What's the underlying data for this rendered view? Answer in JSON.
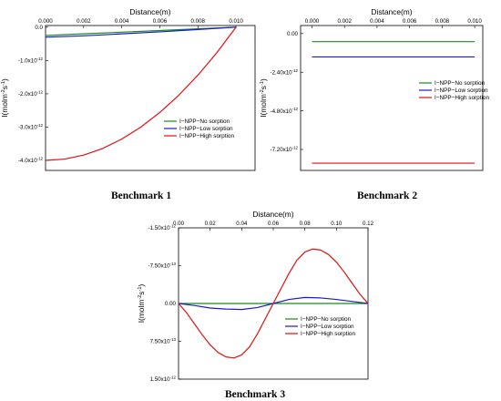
{
  "chart_data": [
    {
      "type": "line",
      "caption": "Benchmark 1",
      "xlabel": "Distance(m)",
      "ylabel_main": "I(molm",
      "ylabel_sup1": "-2",
      "ylabel_mid": "s",
      "ylabel_sup2": "-1",
      "ylabel_end": ")",
      "xlim": [
        0,
        0.011
      ],
      "ylim": [
        -4.3e-12,
        5e-14
      ],
      "x_ticks": [
        {
          "v": 0.0,
          "label": "0.000"
        },
        {
          "v": 0.002,
          "label": "0.002"
        },
        {
          "v": 0.004,
          "label": "0.004"
        },
        {
          "v": 0.006,
          "label": "0.006"
        },
        {
          "v": 0.008,
          "label": "0.008"
        },
        {
          "v": 0.01,
          "label": "0.010"
        }
      ],
      "y_ticks": [
        {
          "v": 0.0,
          "label": "0.0",
          "exp": ""
        },
        {
          "v": -1e-12,
          "label": "-1.0x10",
          "exp": "-12"
        },
        {
          "v": -2e-12,
          "label": "-2.0x10",
          "exp": "-12"
        },
        {
          "v": -3e-12,
          "label": "-3.0x10",
          "exp": "-12"
        },
        {
          "v": -4e-12,
          "label": "-4.0x10",
          "exp": "-12"
        }
      ],
      "legend_position": "center-right",
      "series": [
        {
          "name": "I−NPP−No sorption",
          "color": "#1a8a1a",
          "x": [
            0,
            0.002,
            0.004,
            0.006,
            0.008,
            0.01
          ],
          "y": [
            -2.5e-13,
            -2e-13,
            -1.5e-13,
            -1e-13,
            -5e-14,
            0.0
          ]
        },
        {
          "name": "I−NPP−Low sorption",
          "color": "#1a1ad0",
          "x": [
            0,
            0.002,
            0.004,
            0.006,
            0.008,
            0.01
          ],
          "y": [
            -3e-13,
            -2.6e-13,
            -2e-13,
            -1.4e-13,
            -7e-14,
            0.0
          ]
        },
        {
          "name": "I−NPP−High sorption",
          "color": "#e01010",
          "x": [
            0,
            0.001,
            0.002,
            0.003,
            0.004,
            0.005,
            0.006,
            0.007,
            0.008,
            0.009,
            0.01
          ],
          "y": [
            -4e-12,
            -3.96e-12,
            -3.84e-12,
            -3.64e-12,
            -3.36e-12,
            -3e-12,
            -2.56e-12,
            -2.04e-12,
            -1.44e-12,
            -7.6e-13,
            0.0
          ]
        }
      ]
    },
    {
      "type": "line",
      "caption": "Benchmark 2",
      "xlabel": "Distance(m)",
      "ylabel_main": "I(molm",
      "ylabel_sup1": "-2",
      "ylabel_mid": "s",
      "ylabel_sup2": "-1",
      "ylabel_end": ")",
      "xlim": [
        -0.0007,
        0.0105
      ],
      "ylim": [
        -8.5e-12,
        5e-13
      ],
      "x_ticks": [
        {
          "v": 0.0,
          "label": "0.000"
        },
        {
          "v": 0.002,
          "label": "0.002"
        },
        {
          "v": 0.004,
          "label": "0.004"
        },
        {
          "v": 0.006,
          "label": "0.006"
        },
        {
          "v": 0.008,
          "label": "0.008"
        },
        {
          "v": 0.01,
          "label": "0.010"
        }
      ],
      "y_ticks": [
        {
          "v": 0.0,
          "label": "0.00",
          "exp": ""
        },
        {
          "v": -2.4e-12,
          "label": "-2.40x10",
          "exp": "-12"
        },
        {
          "v": -4.8e-12,
          "label": "-4.80x10",
          "exp": "-12"
        },
        {
          "v": -7.2e-12,
          "label": "-7.20x10",
          "exp": "-12"
        }
      ],
      "legend_position": "center-right",
      "series": [
        {
          "name": "I−NPP−No sorption",
          "color": "#1a8a1a",
          "x": [
            0,
            0.01
          ],
          "y": [
            -5e-13,
            -5e-13
          ]
        },
        {
          "name": "I−NPP−Low sorption",
          "color": "#1a1ad0",
          "x": [
            0,
            0.01
          ],
          "y": [
            -1.45e-12,
            -1.45e-12
          ]
        },
        {
          "name": "I−NPP−High sorption",
          "color": "#e01010",
          "x": [
            0,
            0.01
          ],
          "y": [
            -8.05e-12,
            -8.05e-12
          ]
        }
      ]
    },
    {
      "type": "line",
      "caption": "Benchmark 3",
      "xlabel": "Distance(m)",
      "ylabel_main": "I(molm",
      "ylabel_sup1": "-2",
      "ylabel_mid": "s",
      "ylabel_sup2": "-1",
      "ylabel_end": ")",
      "xlim": [
        0,
        0.12
      ],
      "ylim": [
        -1.5e-12,
        1.5e-12
      ],
      "y_inverted": true,
      "x_ticks": [
        {
          "v": 0.0,
          "label": "0.00"
        },
        {
          "v": 0.02,
          "label": "0.02"
        },
        {
          "v": 0.04,
          "label": "0.04"
        },
        {
          "v": 0.06,
          "label": "0.06"
        },
        {
          "v": 0.08,
          "label": "0.08"
        },
        {
          "v": 0.1,
          "label": "0.10"
        },
        {
          "v": 0.12,
          "label": "0.12"
        }
      ],
      "y_ticks": [
        {
          "v": -1.5e-12,
          "label": "-1.50x10",
          "exp": "-12"
        },
        {
          "v": -7.5e-13,
          "label": "-7.50x10",
          "exp": "-13"
        },
        {
          "v": 0.0,
          "label": "0.00",
          "exp": ""
        },
        {
          "v": 7.5e-13,
          "label": "7.50x10",
          "exp": "-13"
        },
        {
          "v": 1.5e-12,
          "label": "1.50x10",
          "exp": "-12"
        }
      ],
      "legend_position": "bottom-right",
      "series": [
        {
          "name": "I−NPP−No sorption",
          "color": "#1a8a1a",
          "x": [
            0,
            0.12
          ],
          "y": [
            0.0,
            0.0
          ]
        },
        {
          "name": "I−NPP−Low sorption",
          "color": "#1a1ad0",
          "x": [
            0,
            0.01,
            0.02,
            0.03,
            0.04,
            0.05,
            0.06,
            0.07,
            0.08,
            0.09,
            0.1,
            0.11,
            0.12
          ],
          "y": [
            0.0,
            4e-14,
            9e-14,
            1.1e-13,
            1.2e-13,
            8e-14,
            0.0,
            -8e-14,
            -1.2e-13,
            -1.1e-13,
            -8e-14,
            -4e-14,
            0.0
          ]
        },
        {
          "name": "I−NPP−High sorption",
          "color": "#e01010",
          "x": [
            0,
            0.005,
            0.01,
            0.015,
            0.02,
            0.025,
            0.03,
            0.035,
            0.04,
            0.045,
            0.05,
            0.055,
            0.06,
            0.065,
            0.07,
            0.075,
            0.08,
            0.085,
            0.09,
            0.095,
            0.1,
            0.105,
            0.11,
            0.115,
            0.12
          ],
          "y": [
            0.0,
            1.8e-13,
            4e-13,
            6.2e-13,
            8.2e-13,
            9.7e-13,
            1.06e-12,
            1.08e-12,
            1.02e-12,
            8.6e-13,
            6e-13,
            3e-13,
            0.0,
            -3e-13,
            -6e-13,
            -8.6e-13,
            -1.02e-12,
            -1.08e-12,
            -1.06e-12,
            -9.7e-13,
            -8.2e-13,
            -6.2e-13,
            -4e-13,
            -1.8e-13,
            0.0
          ]
        }
      ]
    }
  ]
}
